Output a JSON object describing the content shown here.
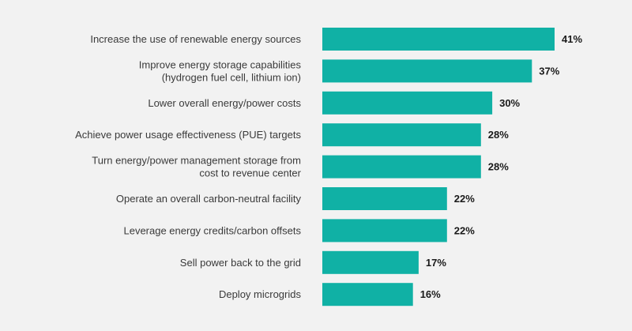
{
  "chart_data": {
    "type": "bar",
    "orientation": "horizontal",
    "categories": [
      [
        "Increase the use of renewable energy sources"
      ],
      [
        "Improve energy storage capabilities",
        "(hydrogen fuel cell, lithium ion)"
      ],
      [
        "Lower overall energy/power costs"
      ],
      [
        "Achieve power usage effectiveness (PUE) targets"
      ],
      [
        "Turn energy/power management storage from",
        "cost to revenue center"
      ],
      [
        "Operate an overall carbon-neutral facility"
      ],
      [
        "Leverage energy credits/carbon offsets"
      ],
      [
        "Sell power back to the grid"
      ],
      [
        "Deploy microgrids"
      ]
    ],
    "values": [
      41,
      37,
      30,
      28,
      28,
      22,
      22,
      17,
      16
    ],
    "value_labels": [
      "41%",
      "37%",
      "30%",
      "28%",
      "28%",
      "22%",
      "22%",
      "17%",
      "16%"
    ],
    "xlim": [
      0,
      41
    ],
    "bar_color": "#10b1a5",
    "grid": false
  }
}
